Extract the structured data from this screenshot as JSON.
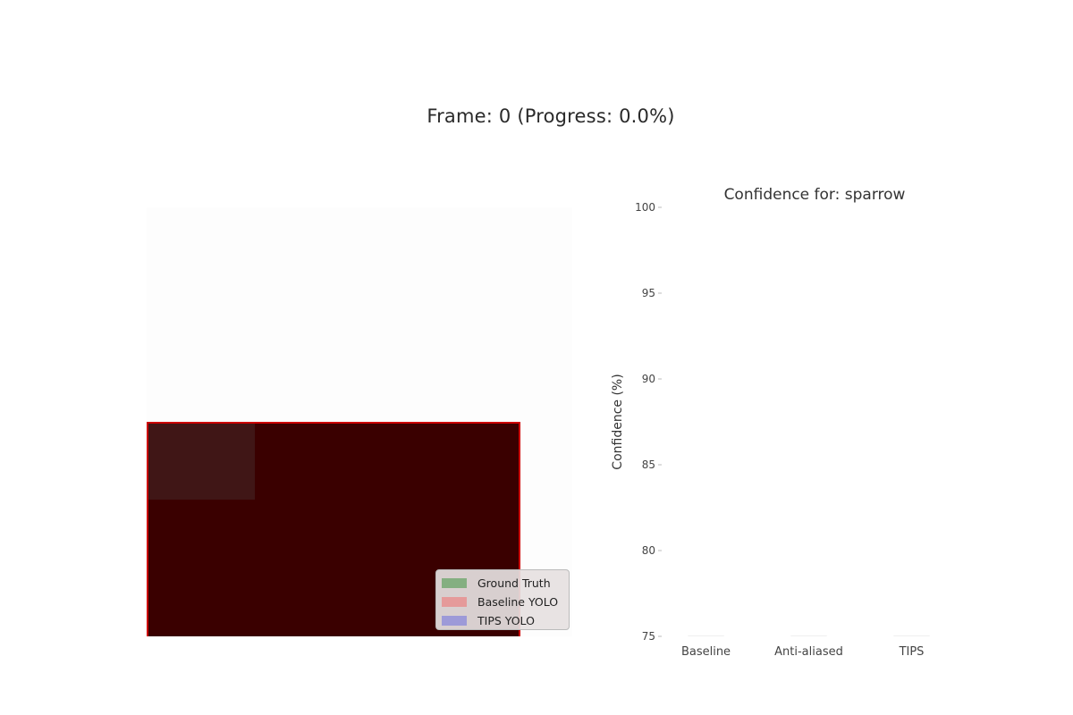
{
  "figure": {
    "title": "Frame: 0 (Progress: 0.0%)"
  },
  "legend": {
    "items": [
      {
        "label": "Ground Truth",
        "color": "#4c9a4c"
      },
      {
        "label": "Baseline YOLO",
        "color": "#ee7777"
      },
      {
        "label": "TIPS YOLO",
        "color": "#7777dd"
      }
    ]
  },
  "colors": {
    "frame_fill": "#3a0000",
    "baseline_box": "#cc0000",
    "ground_truth_box": "#462828"
  },
  "chart_data": {
    "type": "bar",
    "title": "Confidence for: sparrow",
    "xlabel": "",
    "ylabel": "Confidence (%)",
    "categories": [
      "Baseline",
      "Anti-aliased",
      "TIPS"
    ],
    "values": [
      0,
      0,
      0
    ],
    "ylim": [
      75,
      100
    ],
    "yticks": [
      75,
      80,
      85,
      90,
      95,
      100
    ],
    "grid": false
  }
}
